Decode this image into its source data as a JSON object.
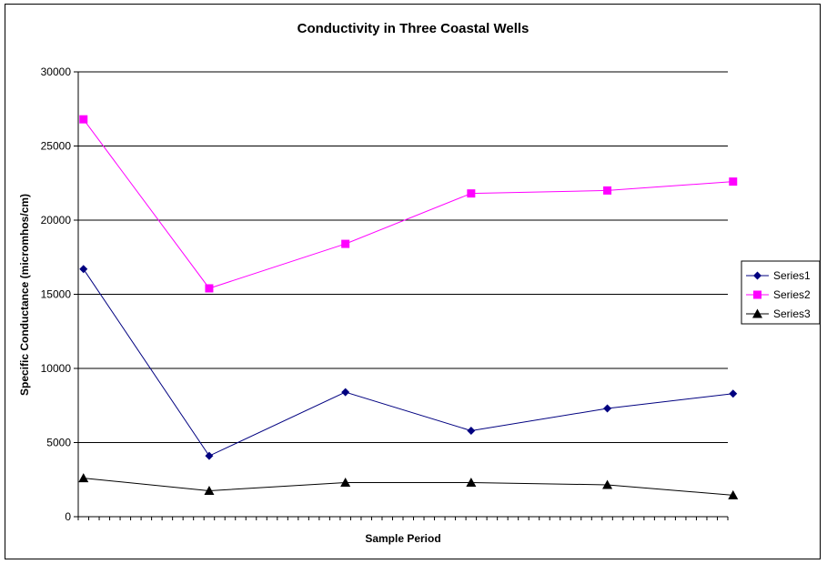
{
  "chart_data": {
    "type": "line",
    "title": "Conductivity in Three Coastal Wells",
    "xlabel": "Sample Period",
    "ylabel": "Specific Conductance (micromhos/cm)",
    "ylim": [
      0,
      30000
    ],
    "yticks": [
      "0",
      "5000",
      "10000",
      "15000",
      "20000",
      "25000",
      "30000"
    ],
    "grid": true,
    "legend_position": "right",
    "x_category_count": 62,
    "x": [
      0,
      12,
      25,
      37,
      50,
      62
    ],
    "series": [
      {
        "name": "Series1",
        "color": "#000080",
        "marker": "diamond",
        "values": [
          16700,
          4100,
          8400,
          5800,
          7300,
          8300
        ]
      },
      {
        "name": "Series2",
        "color": "#FF00FF",
        "marker": "square",
        "values": [
          26800,
          15400,
          18400,
          21800,
          22000,
          22600
        ]
      },
      {
        "name": "Series3",
        "color": "#000000",
        "marker": "triangle",
        "values": [
          2600,
          1750,
          2300,
          2300,
          2150,
          1450
        ]
      }
    ]
  }
}
